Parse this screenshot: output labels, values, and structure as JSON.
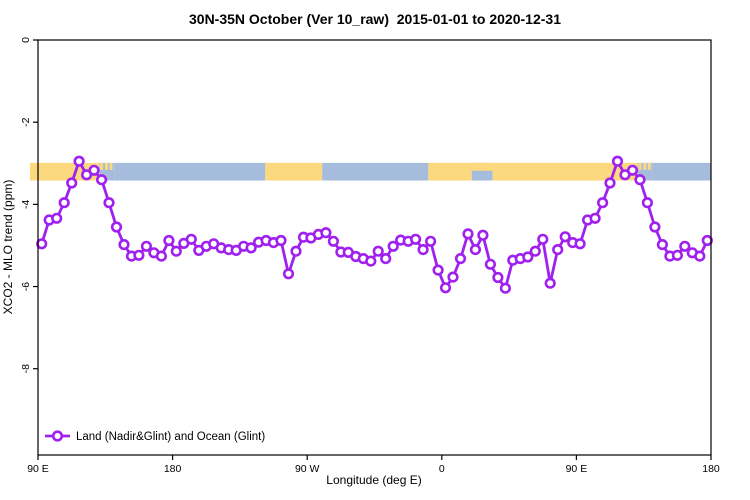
{
  "chart_data": {
    "type": "line",
    "title": "30N-35N October (Ver 10_raw)  2015-01-01 to 2020-12-31",
    "xlabel": "Longitude (deg E)",
    "ylabel": "XCO2 - MLO trend (ppm)",
    "xlim": [
      90,
      540
    ],
    "ylim": [
      -10.1,
      0
    ],
    "grid": false,
    "x_ticks": [
      {
        "pos": 90,
        "label": "90 E"
      },
      {
        "pos": 180,
        "label": "180"
      },
      {
        "pos": 270,
        "label": "90 W"
      },
      {
        "pos": 360,
        "label": "0"
      },
      {
        "pos": 450,
        "label": "90 E"
      },
      {
        "pos": 540,
        "label": "180"
      }
    ],
    "y_ticks": [
      {
        "pos": 0,
        "label": "0"
      },
      {
        "pos": -2,
        "label": "-2"
      },
      {
        "pos": -4,
        "label": "-4"
      },
      {
        "pos": -6,
        "label": "-6"
      },
      {
        "pos": -8,
        "label": "-8"
      }
    ],
    "legend": {
      "position": "bottom-left",
      "entries": [
        {
          "label": "Land (Nadir&Glint) and Ocean (Glint)",
          "color": "#A020F0",
          "marker": "open-circle"
        }
      ]
    },
    "series": [
      {
        "name": "Land (Nadir&Glint) and Ocean (Glint)",
        "color": "#A020F0",
        "marker_fill": "#ffffff",
        "x_start": 92.5,
        "x_step": 5,
        "values": [
          -4.96,
          -4.38,
          -4.34,
          -3.96,
          -3.48,
          -2.95,
          -3.28,
          -3.17,
          -3.4,
          -3.96,
          -4.55,
          -4.98,
          -5.26,
          -5.24,
          -5.02,
          -5.18,
          -5.26,
          -4.88,
          -5.14,
          -4.95,
          -4.85,
          -5.12,
          -5.02,
          -4.96,
          -5.06,
          -5.1,
          -5.12,
          -5.02,
          -5.06,
          -4.92,
          -4.88,
          -4.93,
          -4.88,
          -5.69,
          -5.14,
          -4.8,
          -4.82,
          -4.73,
          -4.69,
          -4.9,
          -5.16,
          -5.17,
          -5.27,
          -5.32,
          -5.38,
          -5.14,
          -5.32,
          -5.02,
          -4.87,
          -4.9,
          -4.85,
          -5.1,
          -4.9,
          -5.6,
          -6.03,
          -5.77,
          -5.32,
          -4.72,
          -5.1,
          -4.75,
          -5.46,
          -5.78,
          -6.04,
          -5.36,
          -5.32,
          -5.28,
          -5.14,
          -4.85,
          -5.92,
          -5.1,
          -4.79,
          -4.93,
          -4.96,
          -4.38,
          -4.34,
          -3.96,
          -3.48,
          -2.95,
          -3.28,
          -3.17,
          -3.4,
          -3.96,
          -4.55,
          -4.98,
          -5.26,
          -5.24,
          -5.02,
          -5.18,
          -5.26,
          -4.88
        ]
      }
    ],
    "map_band": {
      "description": "30N-35N latitude strip: ocean (blue) and land (yellow) along longitude",
      "y_top": -2.99,
      "y_bottom": -3.42,
      "ocean_color": "#A6BCDC",
      "land_color": "#FCD87E",
      "segments": [
        {
          "from": 90,
          "to": 131,
          "surface": "land"
        },
        {
          "from": 131,
          "to": 141,
          "surface": "islands"
        },
        {
          "from": 141,
          "to": 242,
          "surface": "ocean"
        },
        {
          "from": 242,
          "to": 280,
          "surface": "land"
        },
        {
          "from": 280,
          "to": 351,
          "surface": "ocean"
        },
        {
          "from": 351,
          "to": 380,
          "surface": "land"
        },
        {
          "from": 380,
          "to": 394,
          "surface": "mixed"
        },
        {
          "from": 394,
          "to": 491,
          "surface": "land"
        },
        {
          "from": 491,
          "to": 501,
          "surface": "islands"
        },
        {
          "from": 501,
          "to": 540,
          "surface": "ocean"
        }
      ]
    }
  }
}
